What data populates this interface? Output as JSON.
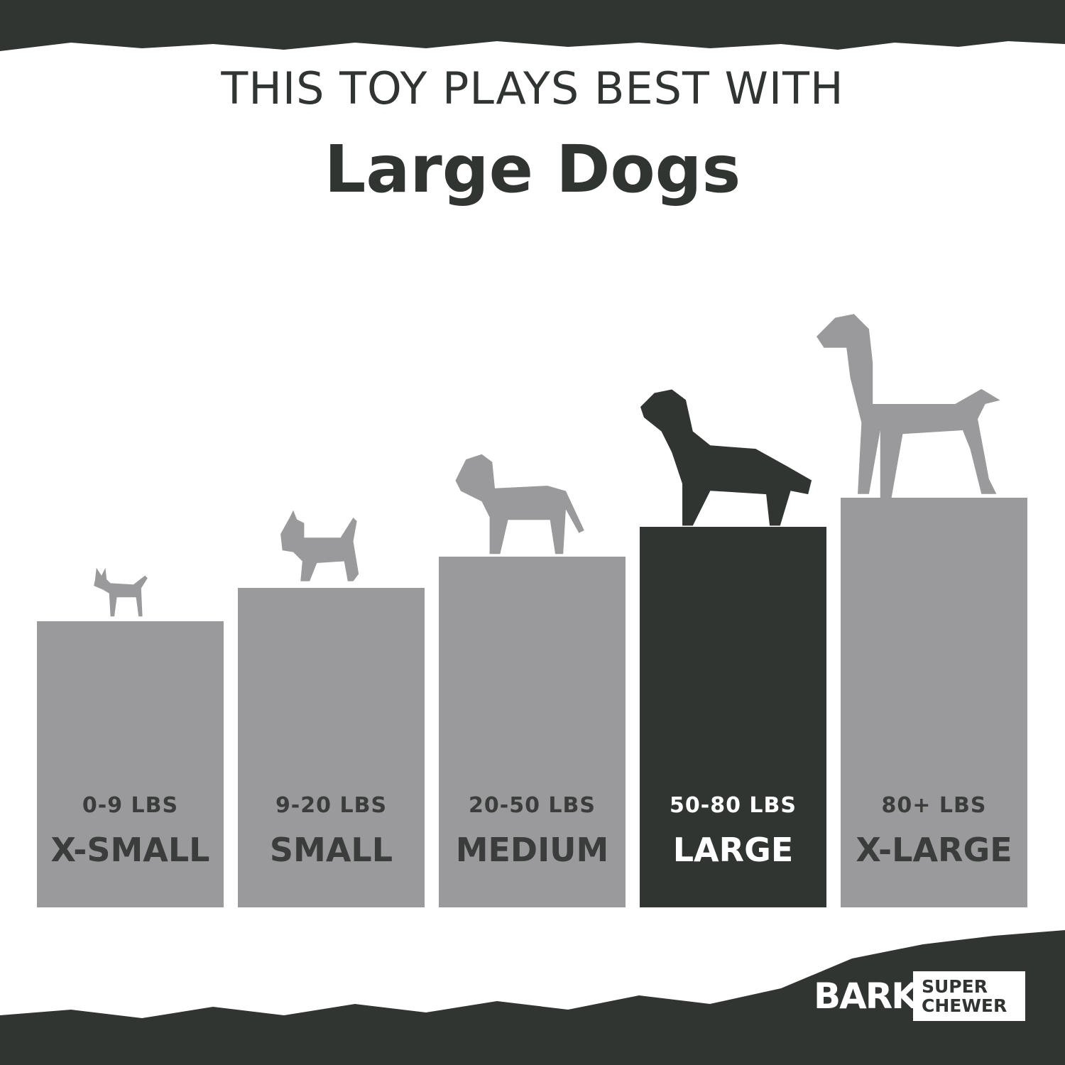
{
  "header": {
    "line1": "THIS TOY PLAYS BEST WITH",
    "line2": "Large Dogs"
  },
  "sizes": [
    {
      "weight": "0-9 LBS",
      "label": "X-SMALL",
      "active": false
    },
    {
      "weight": "9-20 LBS",
      "label": "SMALL",
      "active": false
    },
    {
      "weight": "20-50 LBS",
      "label": "MEDIUM",
      "active": false
    },
    {
      "weight": "50-80 LBS",
      "label": "LARGE",
      "active": true
    },
    {
      "weight": "80+ LBS",
      "label": "X-LARGE",
      "active": false
    }
  ],
  "logo": {
    "brand": "BARK",
    "line1": "SUPER",
    "line2": "CHEWER"
  },
  "colors": {
    "dark": "#313532",
    "gray": "#9a9a9c",
    "background": "#ffffff"
  }
}
